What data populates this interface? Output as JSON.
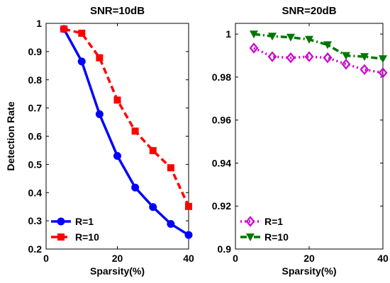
{
  "chart_data": [
    {
      "type": "line",
      "title": "SNR=10dB",
      "xlabel": "Sparsity(%)",
      "ylabel": "Detection Rate",
      "xlim": [
        0,
        40
      ],
      "ylim": [
        0.2,
        1
      ],
      "xticks": [
        0,
        20,
        40
      ],
      "yticks": [
        0.2,
        0.3,
        0.4,
        0.5,
        0.6,
        0.7,
        0.8,
        0.9,
        1
      ],
      "ytick_labels": [
        "0.2",
        "0.3",
        "0.4",
        "0.5",
        "0.6",
        "0.7",
        "0.8",
        "0.9",
        "1"
      ],
      "grid": false,
      "legend_position": "bottom-left",
      "x": [
        5,
        10,
        15,
        20,
        25,
        30,
        35,
        40
      ],
      "series": [
        {
          "name": "R=1",
          "values": [
            0.98,
            0.865,
            0.678,
            0.53,
            0.418,
            0.349,
            0.289,
            0.25
          ],
          "color": "#0000ff",
          "line_style": "solid",
          "marker": "circle"
        },
        {
          "name": "R=10",
          "values": [
            0.98,
            0.965,
            0.878,
            0.728,
            0.618,
            0.549,
            0.488,
            0.351
          ],
          "color": "#ff0000",
          "line_style": "dashed",
          "marker": "square"
        }
      ]
    },
    {
      "type": "line",
      "title": "SNR=20dB",
      "xlabel": "Sparsity(%)",
      "ylabel": "",
      "xlim": [
        0,
        40
      ],
      "ylim": [
        0.9,
        1.005
      ],
      "xticks": [
        0,
        20,
        40
      ],
      "yticks": [
        0.9,
        0.92,
        0.94,
        0.96,
        0.98,
        1
      ],
      "ytick_labels": [
        "0.9",
        "0.92",
        "0.94",
        "0.96",
        "0.98",
        "1"
      ],
      "grid": false,
      "legend_position": "bottom-left",
      "x": [
        5,
        10,
        15,
        20,
        25,
        30,
        35,
        40
      ],
      "series": [
        {
          "name": "R=1",
          "values": [
            0.9935,
            0.9895,
            0.989,
            0.9895,
            0.989,
            0.986,
            0.9835,
            0.982
          ],
          "color": "#cc00cc",
          "line_style": "dotted",
          "marker": "diamond"
        },
        {
          "name": "R=10",
          "values": [
            1.0,
            0.999,
            0.9985,
            0.9975,
            0.995,
            0.99,
            0.9895,
            0.9885
          ],
          "color": "#007700",
          "line_style": "dashdot",
          "marker": "triangle-down"
        }
      ]
    }
  ]
}
